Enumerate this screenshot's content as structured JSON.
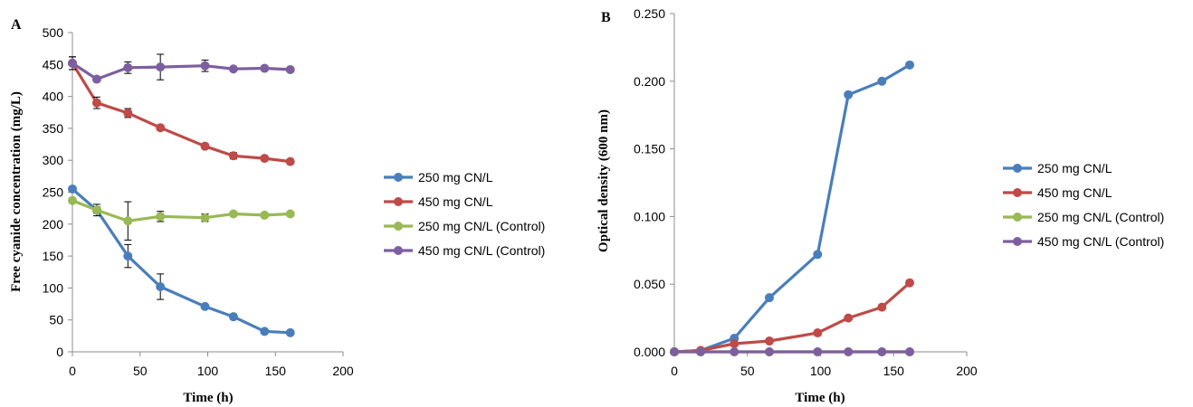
{
  "chart_data": [
    {
      "type": "line",
      "panel_label": "A",
      "xlabel": "Time (h)",
      "ylabel": "Free cyanide concentration (mg/L)",
      "xlim": [
        0,
        200
      ],
      "ylim": [
        0,
        500
      ],
      "xticks": [
        0,
        50,
        100,
        150,
        200
      ],
      "yticks": [
        0,
        50,
        100,
        150,
        200,
        250,
        300,
        350,
        400,
        450,
        500
      ],
      "ytick_labels": [
        "0",
        "50",
        "100",
        "150",
        "200",
        "250",
        "300",
        "350",
        "400",
        "450",
        "500"
      ],
      "grid": false,
      "legend_position": "right",
      "series": [
        {
          "name": "250 mg CN/L",
          "color": "#4a7ebb",
          "x": [
            0,
            18,
            41,
            65,
            98,
            119,
            142,
            161
          ],
          "y": [
            255,
            222,
            150,
            102,
            71,
            55,
            32,
            30
          ],
          "err": [
            0,
            9,
            18,
            20,
            0,
            4,
            0,
            0
          ]
        },
        {
          "name": "450 mg CN/L",
          "color": "#be4b48",
          "x": [
            0,
            18,
            41,
            65,
            98,
            119,
            142,
            161
          ],
          "y": [
            452,
            390,
            374,
            351,
            322,
            307,
            303,
            298
          ],
          "err": [
            10,
            9,
            7,
            4,
            4,
            5,
            0,
            0
          ]
        },
        {
          "name": "250 mg CN/L (Control)",
          "color": "#98b954",
          "x": [
            0,
            18,
            41,
            65,
            98,
            119,
            142,
            161
          ],
          "y": [
            237,
            222,
            205,
            212,
            210,
            216,
            214,
            216
          ],
          "err": [
            0,
            5,
            30,
            8,
            6,
            3,
            0,
            0
          ]
        },
        {
          "name": "450 mg CN/L (Control)",
          "color": "#7d5fa0",
          "x": [
            0,
            18,
            41,
            65,
            98,
            119,
            142,
            161
          ],
          "y": [
            452,
            427,
            445,
            446,
            448,
            443,
            444,
            442
          ],
          "err": [
            10,
            0,
            9,
            20,
            9,
            0,
            0,
            0
          ]
        }
      ]
    },
    {
      "type": "line",
      "panel_label": "B",
      "xlabel": "Time (h)",
      "ylabel": "Optical density (600 nm)",
      "xlim": [
        0,
        200
      ],
      "ylim": [
        0,
        0.25
      ],
      "xticks": [
        0,
        50,
        100,
        150,
        200
      ],
      "yticks": [
        0,
        0.05,
        0.1,
        0.15,
        0.2,
        0.25
      ],
      "ytick_labels": [
        "0.000",
        "0.050",
        "0.100",
        "0.150",
        "0.200",
        "0.250"
      ],
      "grid": false,
      "legend_position": "right",
      "series": [
        {
          "name": "250 mg CN/L",
          "color": "#4a7ebb",
          "x": [
            0,
            18,
            41,
            65,
            98,
            119,
            142,
            161
          ],
          "y": [
            0,
            0.001,
            0.01,
            0.04,
            0.072,
            0.19,
            0.2,
            0.212
          ]
        },
        {
          "name": "450 mg CN/L",
          "color": "#be4b48",
          "x": [
            0,
            18,
            41,
            65,
            98,
            119,
            142,
            161
          ],
          "y": [
            0,
            0.001,
            0.006,
            0.008,
            0.014,
            0.025,
            0.033,
            0.051
          ]
        },
        {
          "name": "250 mg CN/L (Control)",
          "color": "#98b954",
          "x": [
            0,
            18,
            41,
            65,
            98,
            119,
            142,
            161
          ],
          "y": [
            0,
            0,
            0,
            0,
            0,
            0,
            0,
            0
          ]
        },
        {
          "name": "450 mg CN/L (Control)",
          "color": "#7d5fa0",
          "x": [
            0,
            18,
            41,
            65,
            98,
            119,
            142,
            161
          ],
          "y": [
            0,
            0,
            0,
            0,
            0,
            0,
            0,
            0
          ]
        }
      ]
    }
  ]
}
